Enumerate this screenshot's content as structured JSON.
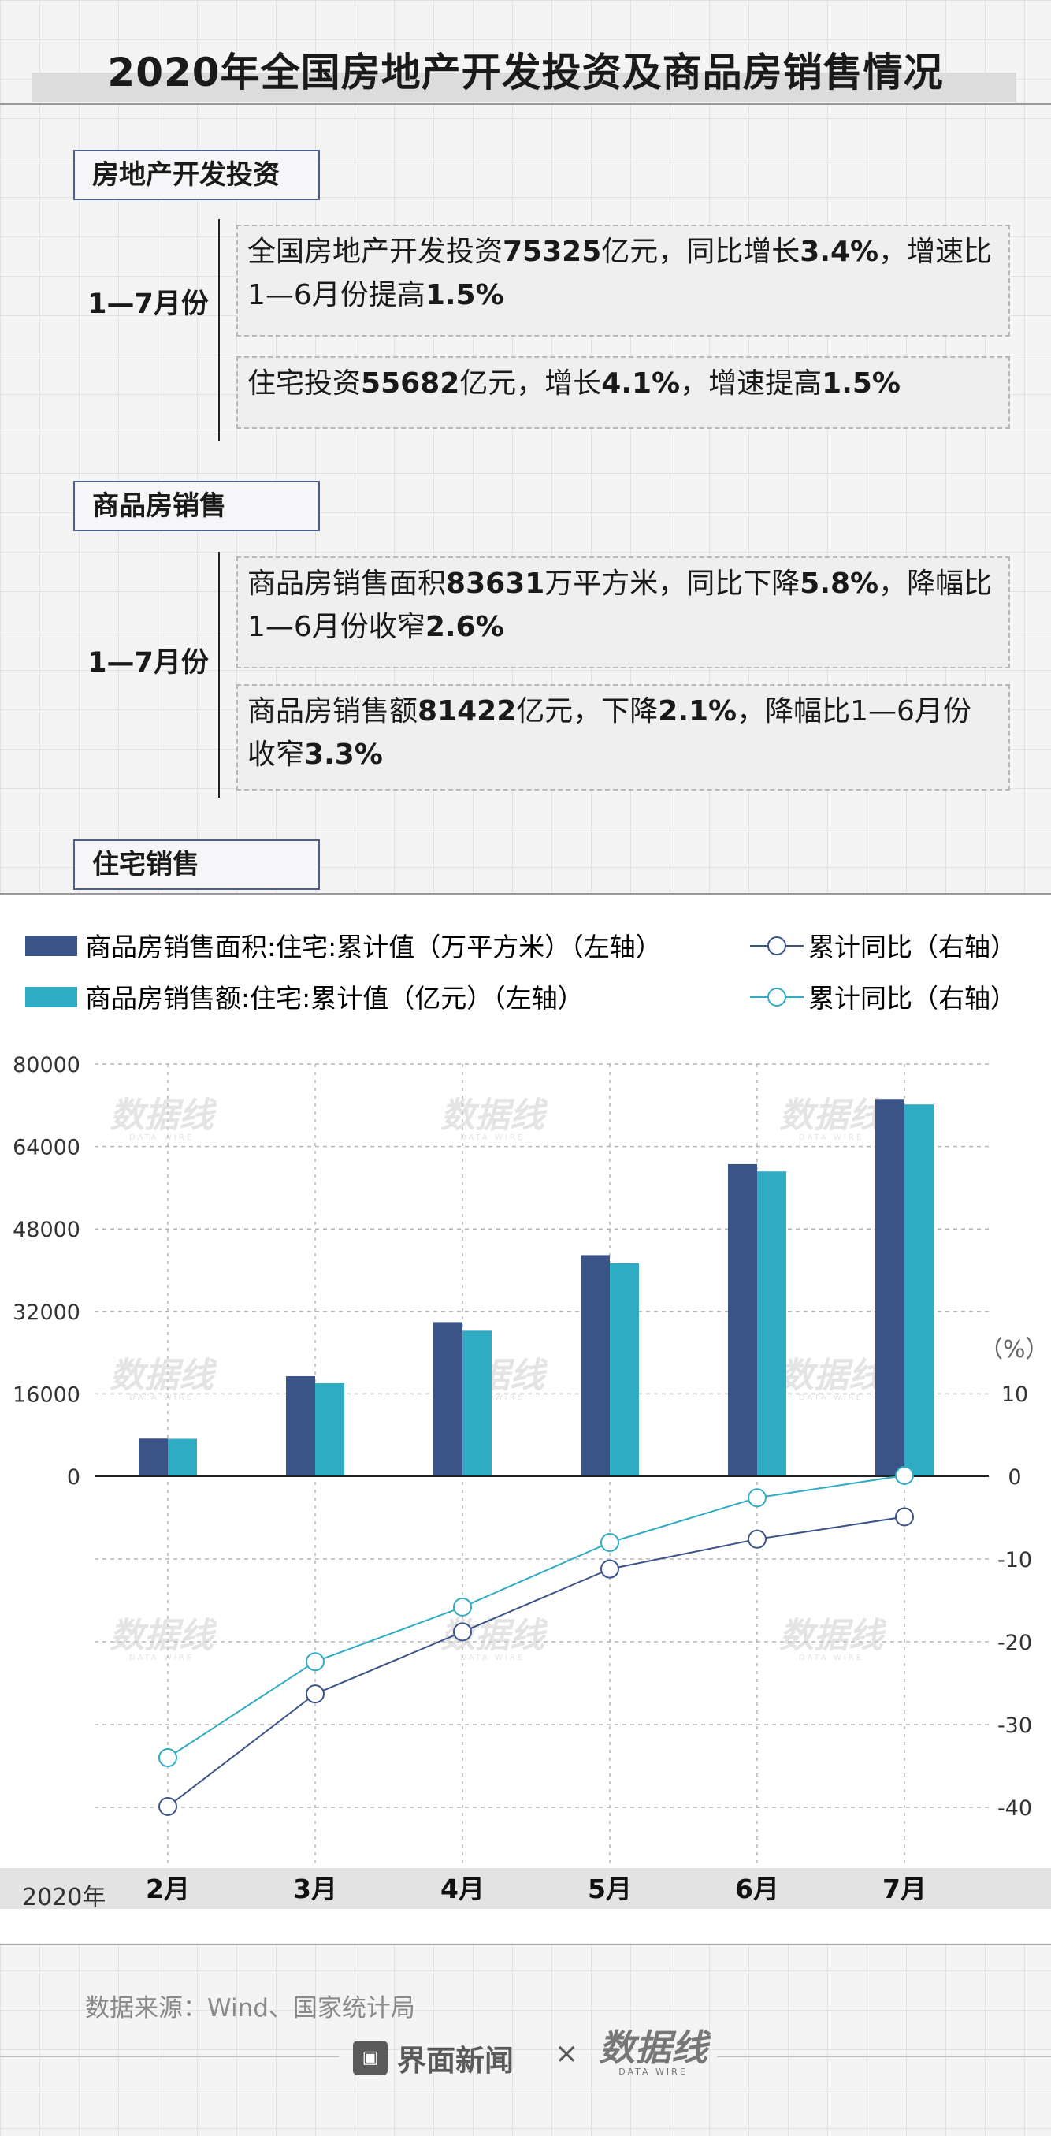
{
  "title": "2020年全国房地产开发投资及商品房销售情况",
  "sections": [
    {
      "label": "房地产开发投资",
      "period": "1—7月份",
      "items": [
        {
          "parts": [
            [
              "全国房地产开发投资",
              false
            ],
            [
              "75325",
              true
            ],
            [
              "亿元，同比增长",
              false
            ],
            [
              "3.4%",
              true
            ],
            [
              "，增速",
              false
            ],
            [
              "比1—6月份提高",
              false
            ],
            [
              "1.5%",
              true
            ]
          ]
        },
        {
          "parts": [
            [
              "住宅投资",
              false
            ],
            [
              "55682",
              true
            ],
            [
              "亿元，增长",
              false
            ],
            [
              "4.1%",
              true
            ],
            [
              "，增速提高",
              false
            ],
            [
              "1.5%",
              true
            ]
          ]
        }
      ]
    },
    {
      "label": "商品房销售",
      "period": "1—7月份",
      "items": [
        {
          "parts": [
            [
              "商品房销售面积",
              false
            ],
            [
              "83631",
              true
            ],
            [
              "万平方米，同比下降",
              false
            ],
            [
              "5.8%",
              true
            ],
            [
              "，降幅",
              false
            ],
            [
              "比1—6月份收窄",
              false
            ],
            [
              "2.6%",
              true
            ]
          ]
        },
        {
          "parts": [
            [
              "商品房销售额",
              false
            ],
            [
              "81422",
              true
            ],
            [
              "亿元，下降",
              false
            ],
            [
              "2.1%",
              true
            ],
            [
              "，降幅比1—6月份",
              false
            ],
            [
              "收窄",
              false
            ],
            [
              "3.3%",
              true
            ]
          ]
        }
      ]
    },
    {
      "label": "住宅销售"
    }
  ],
  "legend": {
    "bar1": "商品房销售面积:住宅:累计值（万平方米）（左轴）",
    "line1": "累计同比（右轴）",
    "bar2": "商品房销售额:住宅:累计值（亿元）（左轴）",
    "line2": "累计同比（右轴）"
  },
  "right_axis_unit": "（%）",
  "year_label": "2020年",
  "source": "数据来源：Wind、国家统计局",
  "brand": "界面新闻",
  "times": "×",
  "datawire_cn": "数据线",
  "datawire_en": "DATA WIRE",
  "colors": {
    "bar1": "#3b5488",
    "bar2": "#2fabc4",
    "line1": "#3b5488",
    "line2": "#2fabc4"
  },
  "chart_data": {
    "type": "bar",
    "categories": [
      "2月",
      "3月",
      "4月",
      "5月",
      "6月",
      "7月"
    ],
    "series": [
      {
        "name": "商品房销售面积:住宅:累计值（万平方米）（左轴）",
        "type": "bar",
        "axis": "left",
        "values": [
          7306,
          19426,
          29918,
          42919,
          60585,
          73227
        ]
      },
      {
        "name": "商品房销售额:住宅:累计值（亿元）（左轴）",
        "type": "bar",
        "axis": "left",
        "values": [
          7275,
          18059,
          28248,
          41326,
          59166,
          72169
        ]
      },
      {
        "name": "累计同比（右轴）",
        "type": "line",
        "axis": "right",
        "values": [
          -39.9,
          -26.3,
          -18.8,
          -11.2,
          -7.6,
          -4.9
        ]
      },
      {
        "name": "累计同比（右轴）",
        "type": "line",
        "axis": "right",
        "values": [
          -34.0,
          -22.4,
          -15.8,
          -8.0,
          -2.6,
          0.1
        ]
      }
    ],
    "left_axis": {
      "ticks": [
        0,
        16000,
        32000,
        48000,
        64000,
        80000
      ],
      "ylim": [
        0,
        80000
      ]
    },
    "right_axis": {
      "ticks": [
        10,
        0,
        -10,
        -20,
        -30,
        -40
      ],
      "ylim": [
        -45,
        10
      ],
      "unit": "（%）"
    },
    "grid": true,
    "legend_position": "top"
  }
}
